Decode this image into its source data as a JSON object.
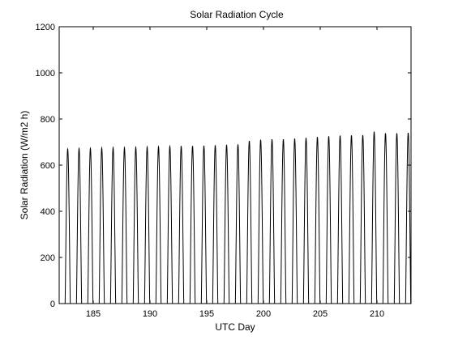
{
  "chart_data": {
    "type": "line",
    "title": "Solar Radiation Cycle",
    "xlabel": "UTC Day",
    "ylabel": "Solar Radiation (W/m2 h)",
    "xlim": [
      182,
      213
    ],
    "ylim": [
      0,
      1200
    ],
    "x_ticks": [
      185,
      190,
      195,
      200,
      205,
      210
    ],
    "y_ticks": [
      0,
      200,
      400,
      600,
      800,
      1000,
      1200
    ],
    "grid": false,
    "legend": "none",
    "line_color": "#000000",
    "series": [
      {
        "days": [
          182,
          183,
          184,
          185,
          186,
          187,
          188,
          189,
          190,
          191,
          192,
          193,
          194,
          195,
          196,
          197,
          198,
          199,
          200,
          201,
          202,
          203,
          204,
          205,
          206,
          207,
          208,
          209,
          210,
          211,
          212,
          213
        ],
        "daily_peak": [
          670,
          672,
          673,
          675,
          676,
          676,
          677,
          679,
          680,
          682,
          683,
          683,
          684,
          686,
          688,
          690,
          705,
          710,
          712,
          712,
          715,
          718,
          722,
          725,
          728,
          729,
          730,
          745,
          738,
          738,
          740,
          750
        ]
      }
    ]
  }
}
